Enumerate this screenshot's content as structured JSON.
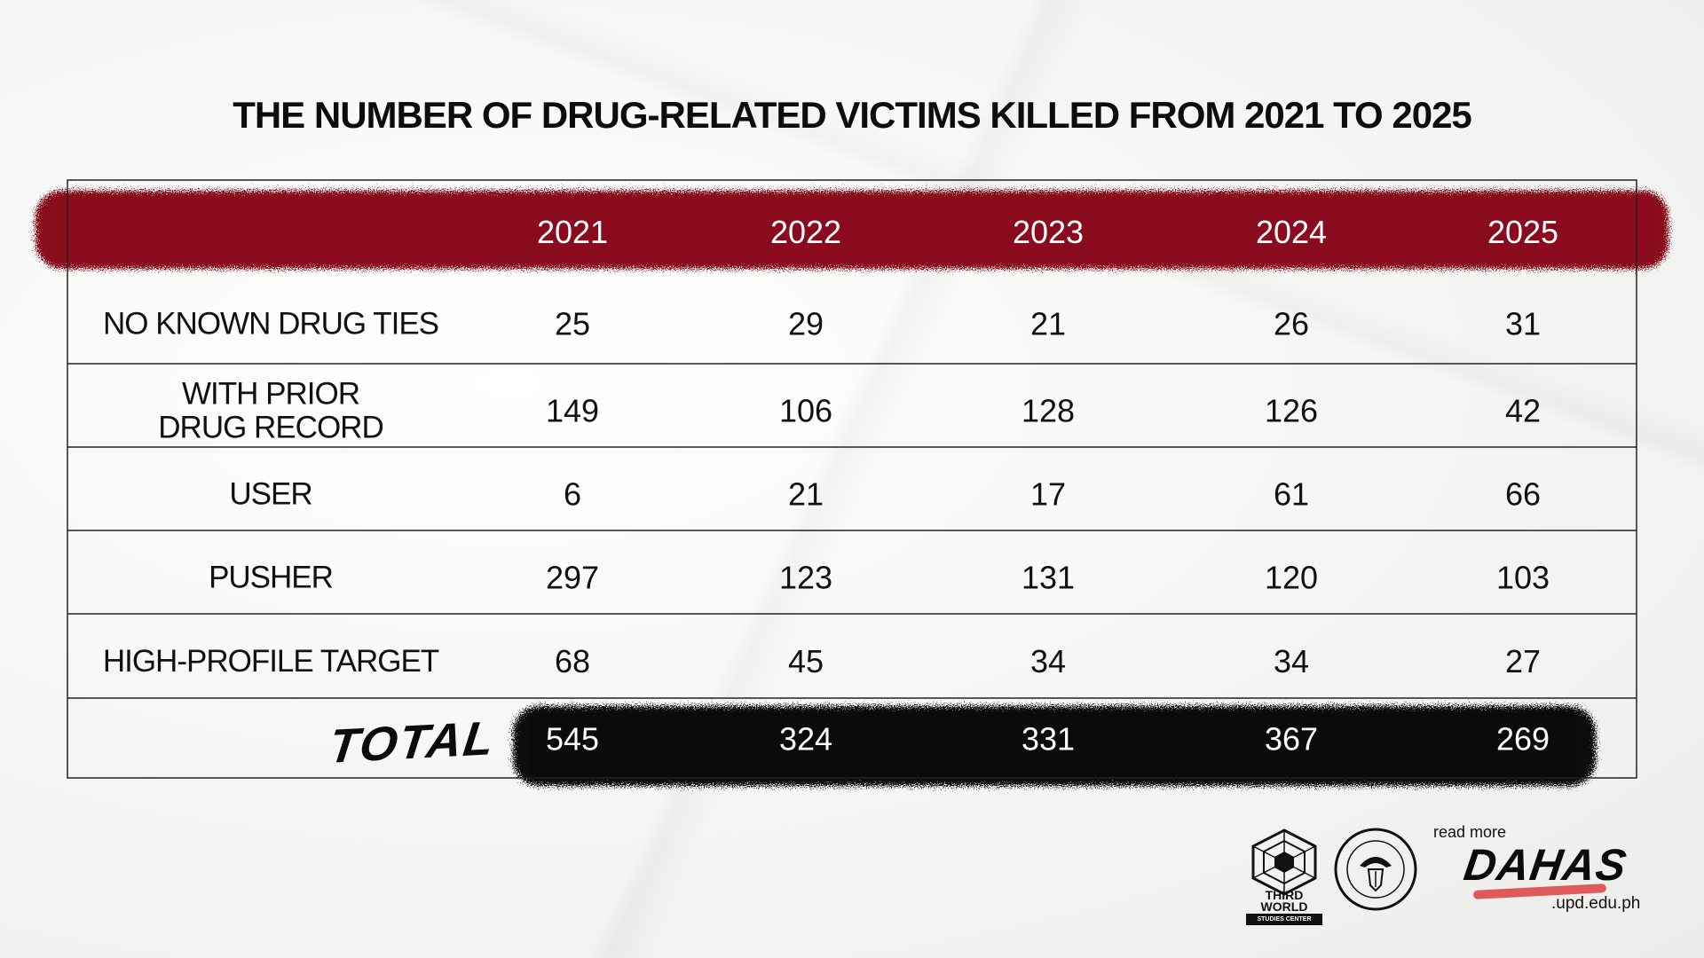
{
  "title": "THE NUMBER OF DRUG-RELATED VICTIMS KILLED FROM 2021 TO 2025",
  "colors": {
    "header_brush": "#8a0a1e",
    "total_brush": "#0b0b0b",
    "grid_line": "#222222",
    "dahas_underline": "#e05a5a"
  },
  "chart_data": {
    "type": "table",
    "title": "THE NUMBER OF DRUG-RELATED VICTIMS KILLED FROM 2021 TO 2025",
    "columns": [
      "2021",
      "2022",
      "2023",
      "2024",
      "2025"
    ],
    "rows": [
      {
        "label_lines": [
          "NO KNOWN DRUG TIES"
        ],
        "values": [
          25,
          29,
          21,
          26,
          31
        ]
      },
      {
        "label_lines": [
          "WITH PRIOR",
          "DRUG RECORD"
        ],
        "values": [
          149,
          106,
          128,
          126,
          42
        ]
      },
      {
        "label_lines": [
          "USER"
        ],
        "values": [
          6,
          21,
          17,
          61,
          66
        ]
      },
      {
        "label_lines": [
          "PUSHER"
        ],
        "values": [
          297,
          123,
          131,
          120,
          103
        ]
      },
      {
        "label_lines": [
          "HIGH-PROFILE TARGET"
        ],
        "values": [
          68,
          45,
          34,
          34,
          27
        ]
      }
    ],
    "total": {
      "label": "TOTAL",
      "values": [
        545,
        324,
        331,
        367,
        269
      ]
    }
  },
  "footer": {
    "third_world_logo": "hexagon-web-logo",
    "third_world_name": "THIRD WORLD",
    "third_world_sub": "STUDIES CENTER",
    "university_seal": "university-seal-logo",
    "read_more": "read more",
    "dahas": "DAHAS",
    "domain": ".upd.edu.ph"
  }
}
